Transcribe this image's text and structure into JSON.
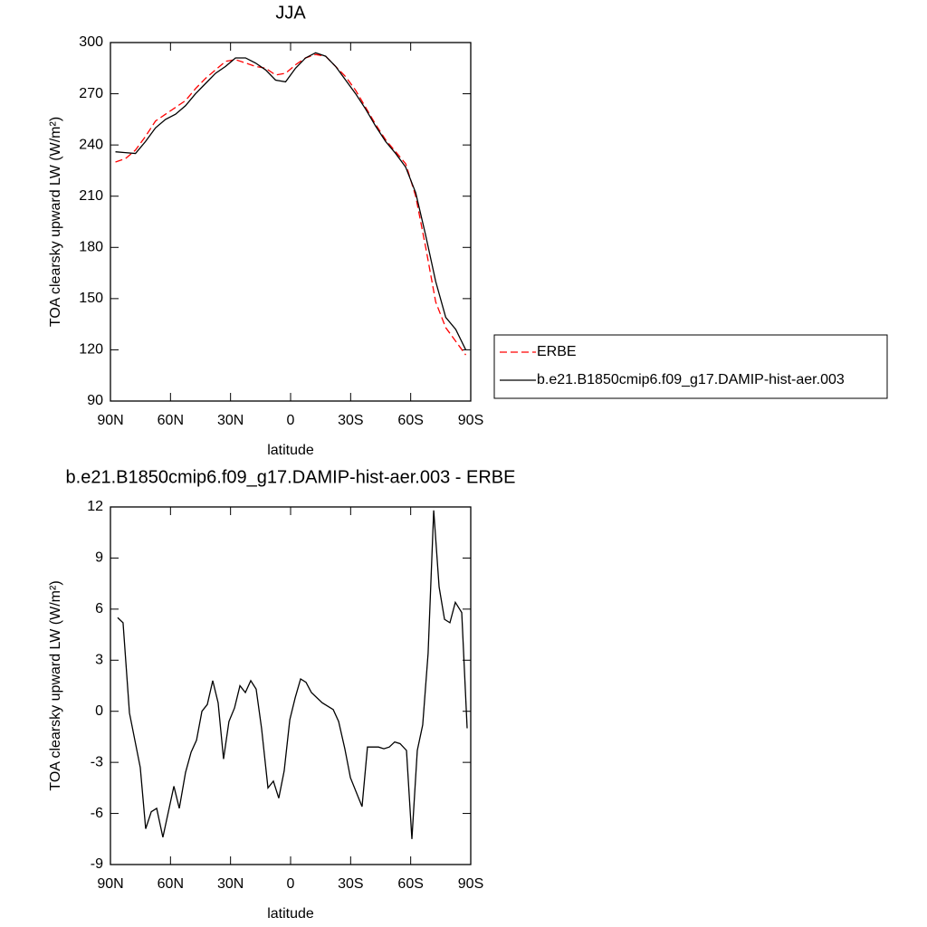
{
  "chart_data": [
    {
      "type": "line",
      "title": "JJA",
      "xlabel": "latitude",
      "ylabel": "TOA clearsky upward LW (W/m²)",
      "x": [
        87.5,
        82.5,
        77.5,
        72.5,
        67.5,
        62.5,
        57.5,
        52.5,
        47.5,
        42.5,
        37.5,
        32.5,
        27.5,
        22.5,
        17.5,
        12.5,
        7.5,
        2.5,
        -2.5,
        -7.5,
        -12.5,
        -17.5,
        -22.5,
        -27.5,
        -32.5,
        -37.5,
        -42.5,
        -47.5,
        -52.5,
        -57.5,
        -62.5,
        -67.5,
        -72.5,
        -77.5,
        -82.5,
        -87.5
      ],
      "series": [
        {
          "name": "ERBE",
          "color": "#ff0000",
          "style": "dashed",
          "values": [
            230,
            232,
            237,
            245,
            254,
            258,
            262,
            266,
            273,
            279,
            284,
            289,
            290,
            288,
            286,
            285,
            281,
            282,
            287,
            291,
            293,
            292,
            286,
            280,
            272,
            262,
            252,
            243,
            236,
            229,
            210,
            180,
            148,
            133,
            125,
            117
          ]
        },
        {
          "name": "b.e21.B1850cmip6.f09_g17.DAMIP-hist-aer.003",
          "color": "#000000",
          "style": "solid",
          "values": [
            236,
            235.5,
            235,
            242,
            250,
            255,
            258,
            263,
            270,
            276,
            282,
            286,
            291,
            291,
            288,
            284,
            278,
            277,
            285,
            291,
            294,
            292,
            286,
            278,
            270,
            261,
            251,
            242,
            235,
            227,
            212,
            187,
            160,
            139,
            132,
            120
          ]
        }
      ],
      "xlim": [
        90,
        -90
      ],
      "xticks": [
        {
          "value": 90,
          "label": "90N"
        },
        {
          "value": 60,
          "label": "60N"
        },
        {
          "value": 30,
          "label": "30N"
        },
        0,
        {
          "value": -30,
          "label": "30S"
        },
        {
          "value": -60,
          "label": "60S"
        },
        {
          "value": -90,
          "label": "90S"
        }
      ],
      "ylim": [
        90,
        300
      ],
      "yticks": [
        90,
        120,
        150,
        180,
        210,
        240,
        270,
        300
      ],
      "legend": "right"
    },
    {
      "type": "line",
      "title": "b.e21.B1850cmip6.f09_g17.DAMIP-hist-aer.003 - ERBE",
      "xlabel": "latitude",
      "ylabel": "TOA clearsky upward LW (W/m²)",
      "x": [
        86.4,
        83.7,
        80.5,
        75.1,
        72.4,
        69.6,
        66.9,
        63.8,
        58.3,
        55.6,
        52.5,
        49.7,
        47.0,
        44.3,
        41.6,
        38.9,
        36.2,
        33.5,
        30.8,
        28.0,
        25.3,
        22.6,
        19.9,
        17.2,
        14.5,
        11.3,
        8.6,
        5.9,
        3.2,
        0.4,
        -2.3,
        -5.0,
        -7.7,
        -10.4,
        -15.8,
        -21.3,
        -24.0,
        -27.1,
        -29.9,
        -35.7,
        -38.4,
        -41.2,
        -43.9,
        -46.6,
        -49.3,
        -52.0,
        -54.7,
        -57.9,
        -60.6,
        -63.3,
        -66.0,
        -68.7,
        -71.5,
        -74.2,
        -76.9,
        -79.6,
        -82.3,
        -85.5,
        -88.2
      ],
      "values": [
        5.5,
        5.2,
        -0.1,
        -3.3,
        -6.9,
        -5.9,
        -5.7,
        -7.4,
        -4.4,
        -5.7,
        -3.6,
        -2.4,
        -1.7,
        0,
        0.4,
        1.8,
        0.5,
        -2.8,
        -0.6,
        0.2,
        1.5,
        1.1,
        1.8,
        1.3,
        -1.0,
        -4.5,
        -4.1,
        -5.1,
        -3.5,
        -0.5,
        0.8,
        1.9,
        1.7,
        1.1,
        0.5,
        0.1,
        -0.6,
        -2.2,
        -3.9,
        -5.6,
        -2.1,
        -2.1,
        -2.1,
        -2.2,
        -2.1,
        -1.8,
        -1.9,
        -2.3,
        -7.5,
        -2.3,
        -0.8,
        3.4,
        11.8,
        7.3,
        5.4,
        5.2,
        6.4,
        5.8,
        -1.0
      ],
      "color": "#000000",
      "xlim": [
        90,
        -90
      ],
      "xticks": [
        {
          "value": 90,
          "label": "90N"
        },
        {
          "value": 60,
          "label": "60N"
        },
        {
          "value": 30,
          "label": "30N"
        },
        0,
        {
          "value": -30,
          "label": "30S"
        },
        {
          "value": -60,
          "label": "60S"
        },
        {
          "value": -90,
          "label": "90S"
        }
      ],
      "ylim": [
        -9,
        12
      ],
      "yticks": [
        -9,
        -6,
        -3,
        0,
        3,
        6,
        9,
        12
      ]
    }
  ]
}
